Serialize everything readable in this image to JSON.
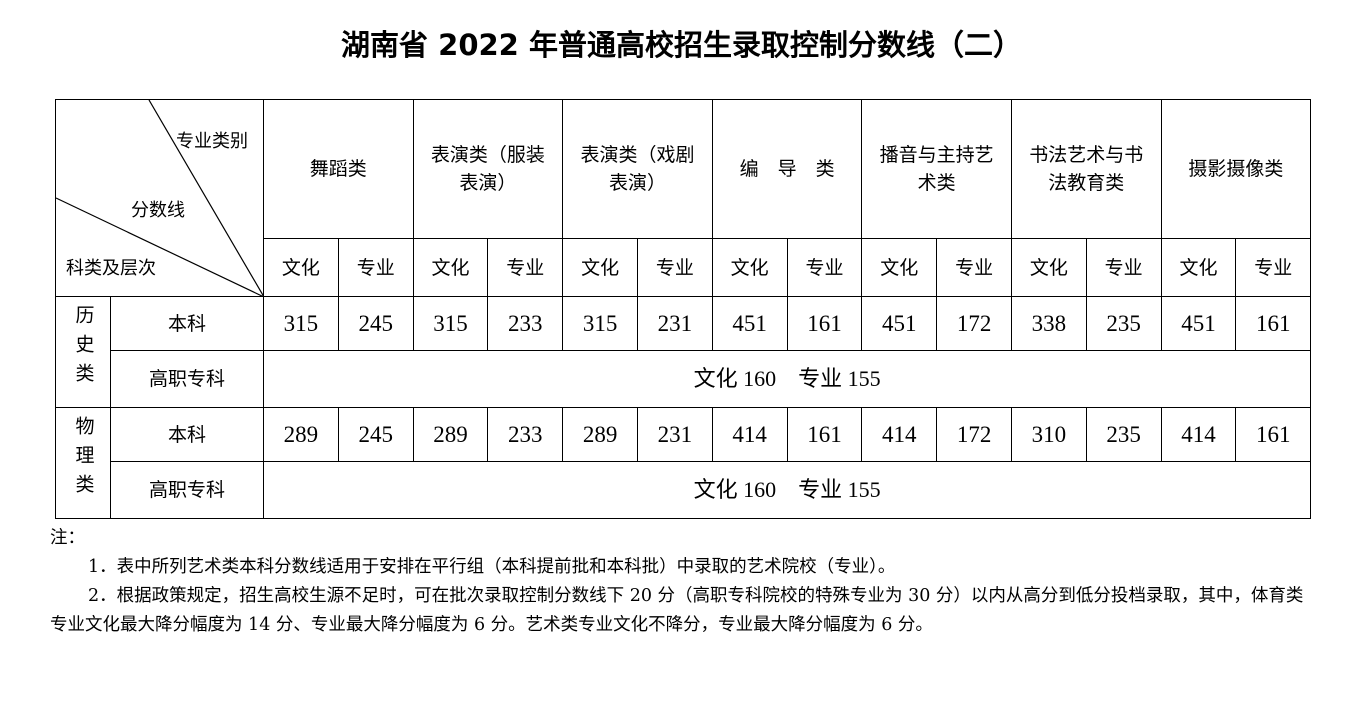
{
  "title": "湖南省 2022 年普通高校招生录取控制分数线（二）",
  "corner": {
    "top": "专业类别",
    "middle": "分数线",
    "bottom": "科类及层次"
  },
  "categories": [
    "舞蹈类",
    "表演类（服装表演）",
    "表演类（戏剧表演）",
    "编　导　类",
    "播音与主持艺术类",
    "书法艺术与书法教育类",
    "摄影摄像类"
  ],
  "sub_headers": {
    "culture": "文化",
    "major": "专业"
  },
  "groups": [
    {
      "name": "历史类",
      "rows": [
        {
          "level": "本科",
          "values": [
            "315",
            "245",
            "315",
            "233",
            "315",
            "231",
            "451",
            "161",
            "451",
            "172",
            "338",
            "235",
            "451",
            "161"
          ]
        },
        {
          "level": "高职专科",
          "merged": "文化 160　专业 155"
        }
      ]
    },
    {
      "name": "物理类",
      "rows": [
        {
          "level": "本科",
          "values": [
            "289",
            "245",
            "289",
            "233",
            "289",
            "231",
            "414",
            "161",
            "414",
            "172",
            "310",
            "235",
            "414",
            "161"
          ]
        },
        {
          "level": "高职专科",
          "merged": "文化 160　专业 155"
        }
      ]
    }
  ],
  "notes": {
    "label": "注：",
    "items": [
      "1．表中所列艺术类本科分数线适用于安排在平行组（本科提前批和本科批）中录取的艺术院校（专业）。",
      "2．根据政策规定，招生高校生源不足时，可在批次录取控制分数线下 20 分（高职专科院校的特殊专业为 30 分）以内从高分到低分投档录取，其中，体育类专业文化最大降分幅度为 14 分、专业最大降分幅度为 6 分。艺术类专业文化不降分，专业最大降分幅度为 6 分。"
    ]
  }
}
